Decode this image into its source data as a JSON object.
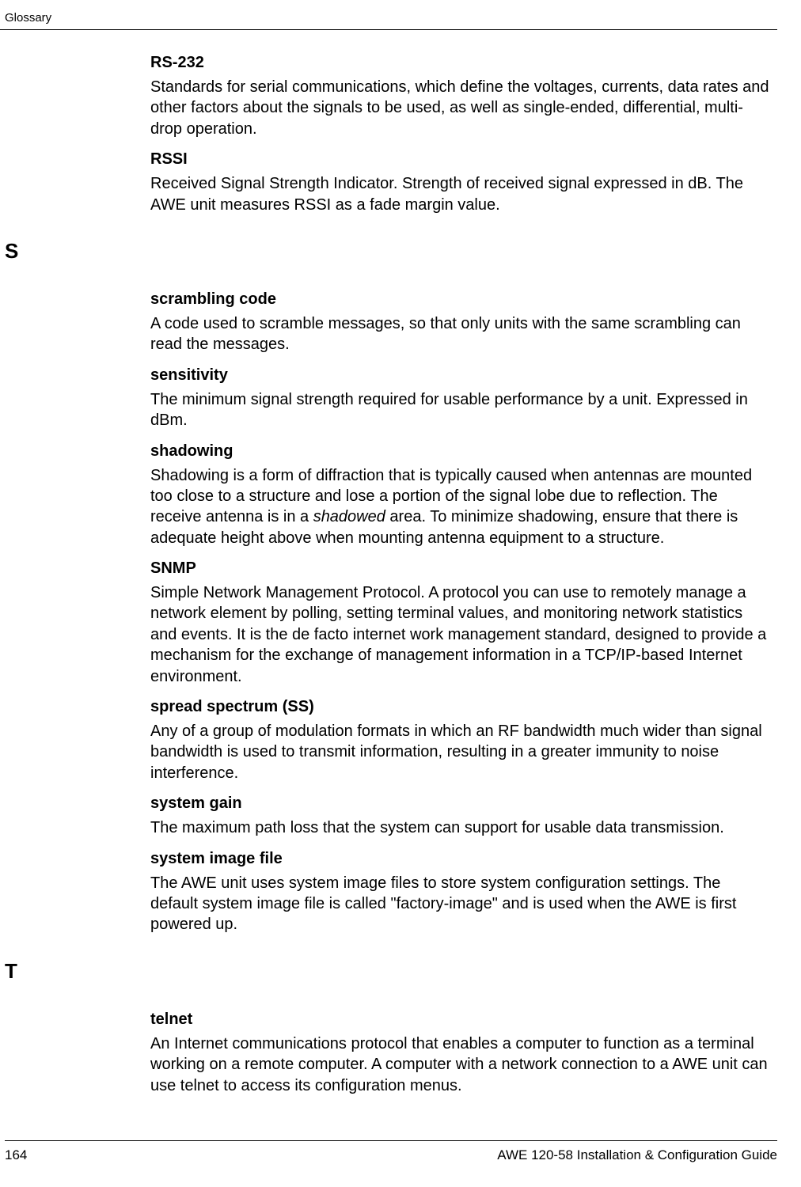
{
  "running_header": "Glossary",
  "entries_top": [
    {
      "term": "RS-232",
      "definition": "Standards for serial communications, which define the voltages, currents, data rates and other factors about the signals to be used, as well as single-ended, differential, multi-drop operation."
    },
    {
      "term": "RSSI",
      "definition": "Received Signal Strength Indicator. Strength of received signal expressed in dB. The AWE unit measures RSSI as a fade margin value."
    }
  ],
  "section_s": {
    "letter": "S",
    "entries": [
      {
        "term": "scrambling code",
        "definition": "A code used to scramble messages, so that only units with the same scrambling can read the messages."
      },
      {
        "term": "sensitivity",
        "definition": "The minimum signal strength required for usable performance by a unit. Expressed in dBm."
      },
      {
        "term": "shadowing",
        "definition_pre": "Shadowing is a form of diffraction that is typically caused when antennas are mounted too close to a structure and lose a portion of the signal lobe due to reflection. The receive antenna is in a ",
        "definition_italic": "shadowed",
        "definition_post": " area. To minimize shadowing, ensure that there is adequate height above when mounting antenna equipment to a structure."
      },
      {
        "term": "SNMP",
        "definition": "Simple Network Management Protocol. A protocol you can use to remotely manage a network element by polling, setting terminal values, and monitoring network statistics and events. It is the de facto internet work management standard, designed to provide a mechanism for the exchange of management information in a TCP/IP-based Internet environment."
      },
      {
        "term": "spread spectrum (SS)",
        "definition": "Any of a group of modulation formats in which an RF bandwidth much wider than signal bandwidth is used to transmit information, resulting in a greater immunity to noise interference."
      },
      {
        "term": "system gain",
        "definition": "The maximum path loss that the system can support for usable data transmission."
      },
      {
        "term": "system image file",
        "definition": "The AWE unit uses system image files to store system configuration settings. The default system image file is called \"factory-image\" and is used when the AWE is first powered up."
      }
    ]
  },
  "section_t": {
    "letter": "T",
    "entries": [
      {
        "term": "telnet",
        "definition": "An Internet communications protocol that enables a computer to function as a terminal working on a remote computer. A computer with a network connection to a AWE unit can use telnet to access its configuration menus."
      }
    ]
  },
  "footer": {
    "page_number": "164",
    "doc_title": "AWE 120-58   Installation & Configuration Guide"
  }
}
